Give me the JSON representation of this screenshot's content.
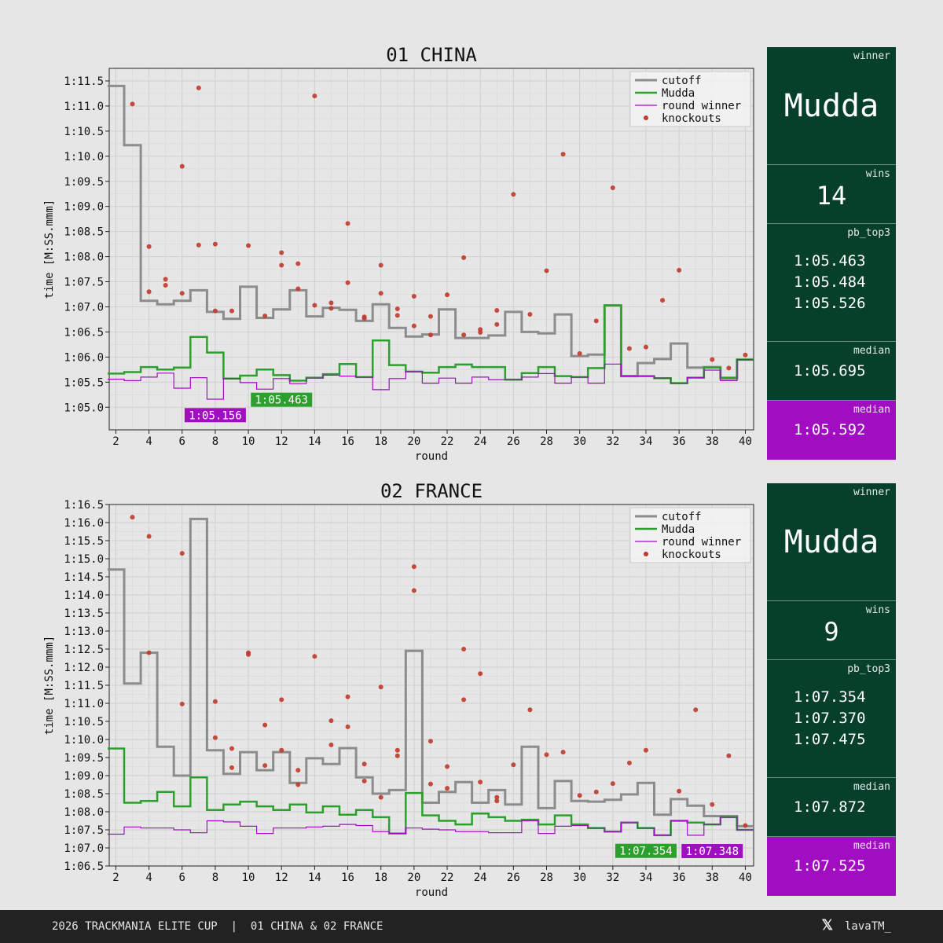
{
  "chart_data": [
    {
      "type": "line",
      "title": "01 CHINA",
      "xlabel": "round",
      "ylabel": "time [M:SS.mmm]",
      "xlim": [
        1.6,
        40.5
      ],
      "ylim": [
        64.55,
        71.75
      ],
      "xticks": [
        2,
        4,
        6,
        8,
        10,
        12,
        14,
        16,
        18,
        20,
        22,
        24,
        26,
        28,
        30,
        32,
        34,
        36,
        38,
        40
      ],
      "yticks": [
        65.0,
        65.5,
        66.0,
        66.5,
        67.0,
        67.5,
        68.0,
        68.5,
        69.0,
        69.5,
        70.0,
        70.5,
        71.0,
        71.5
      ],
      "ytick_labels": [
        "1:05.0",
        "1:05.5",
        "1:06.0",
        "1:06.5",
        "1:07.0",
        "1:07.5",
        "1:08.0",
        "1:08.5",
        "1:09.0",
        "1:09.5",
        "1:10.0",
        "1:10.5",
        "1:11.0",
        "1:11.5"
      ],
      "legend": {
        "position": "top-right",
        "entries": [
          "cutoff",
          "Mudda",
          "round winner",
          "knockouts"
        ]
      },
      "rounds": [
        2,
        3,
        4,
        5,
        6,
        7,
        8,
        9,
        10,
        11,
        12,
        13,
        14,
        15,
        16,
        17,
        18,
        19,
        20,
        21,
        22,
        23,
        24,
        25,
        26,
        27,
        28,
        29,
        30,
        31,
        32,
        33,
        34,
        35,
        36,
        37,
        38,
        39,
        40
      ],
      "series": [
        {
          "name": "cutoff",
          "color": "#8c8c8c",
          "values": [
            71.4,
            70.22,
            67.12,
            67.05,
            67.12,
            67.33,
            66.9,
            66.76,
            67.4,
            66.78,
            66.95,
            67.33,
            66.81,
            66.98,
            66.94,
            66.72,
            67.05,
            66.58,
            66.41,
            66.45,
            66.95,
            66.38,
            66.38,
            66.43,
            66.9,
            66.5,
            66.47,
            66.85,
            66.02,
            66.05,
            67.03,
            65.62,
            65.88,
            65.96,
            66.27,
            65.79,
            65.8,
            65.57,
            65.95
          ]
        },
        {
          "name": "Mudda",
          "color": "#2ca02c",
          "values": [
            65.67,
            65.7,
            65.8,
            65.75,
            65.79,
            66.4,
            66.09,
            65.57,
            65.63,
            65.75,
            65.64,
            65.53,
            65.59,
            65.66,
            65.86,
            65.6,
            66.33,
            65.84,
            65.71,
            65.69,
            65.8,
            65.85,
            65.8,
            65.8,
            65.55,
            65.68,
            65.8,
            65.62,
            65.6,
            65.78,
            67.03,
            65.62,
            65.62,
            65.58,
            65.48,
            65.59,
            65.79,
            65.59,
            65.95
          ]
        },
        {
          "name": "round winner",
          "color": "#a10ec2",
          "values": [
            65.56,
            65.53,
            65.6,
            65.68,
            65.38,
            65.59,
            65.16,
            65.57,
            65.49,
            65.36,
            65.57,
            65.47,
            65.58,
            65.64,
            65.62,
            65.6,
            65.35,
            65.57,
            65.71,
            65.48,
            65.58,
            65.48,
            65.6,
            65.55,
            65.55,
            65.6,
            65.67,
            65.48,
            65.6,
            65.48,
            65.86,
            65.62,
            65.62,
            65.58,
            65.48,
            65.59,
            65.74,
            65.53,
            65.95
          ]
        }
      ],
      "knockouts": [
        [
          3,
          71.04
        ],
        [
          4,
          68.2
        ],
        [
          4,
          67.3
        ],
        [
          5,
          67.55
        ],
        [
          5,
          67.43
        ],
        [
          6,
          69.8
        ],
        [
          6,
          67.27
        ],
        [
          7,
          71.36
        ],
        [
          7,
          68.23
        ],
        [
          8,
          68.25
        ],
        [
          8,
          66.92
        ],
        [
          9,
          66.92
        ],
        [
          10,
          68.22
        ],
        [
          11,
          66.82
        ],
        [
          12,
          68.08
        ],
        [
          12,
          67.83
        ],
        [
          13,
          67.86
        ],
        [
          13,
          67.36
        ],
        [
          14,
          71.2
        ],
        [
          14,
          67.03
        ],
        [
          15,
          67.08
        ],
        [
          15,
          66.97
        ],
        [
          16,
          68.66
        ],
        [
          16,
          67.48
        ],
        [
          17,
          66.8
        ],
        [
          17,
          66.77
        ],
        [
          18,
          67.83
        ],
        [
          18,
          67.27
        ],
        [
          19,
          66.96
        ],
        [
          19,
          66.83
        ],
        [
          20,
          67.21
        ],
        [
          20,
          66.62
        ],
        [
          21,
          66.81
        ],
        [
          21,
          66.44
        ],
        [
          22,
          67.24
        ],
        [
          23,
          67.98
        ],
        [
          23,
          66.44
        ],
        [
          24,
          66.55
        ],
        [
          24,
          66.49
        ],
        [
          25,
          66.93
        ],
        [
          25,
          66.65
        ],
        [
          26,
          69.24
        ],
        [
          27,
          66.85
        ],
        [
          28,
          67.72
        ],
        [
          29,
          70.04
        ],
        [
          30,
          66.07
        ],
        [
          31,
          66.72
        ],
        [
          32,
          69.37
        ],
        [
          33,
          66.17
        ],
        [
          34,
          66.2
        ],
        [
          35,
          67.13
        ],
        [
          36,
          67.73
        ],
        [
          38,
          65.95
        ],
        [
          39,
          65.78
        ],
        [
          40,
          66.04
        ]
      ],
      "annotations": [
        {
          "text": "1:05.156",
          "color": "#a10ec2",
          "x": 8,
          "y": 65.156
        },
        {
          "text": "1:05.463",
          "color": "#2ca02c",
          "x": 12,
          "y": 65.463
        }
      ]
    },
    {
      "type": "line",
      "title": "02 FRANCE",
      "xlabel": "round",
      "ylabel": "time [M:SS.mmm]",
      "xlim": [
        1.6,
        40.5
      ],
      "ylim": [
        66.5,
        76.5
      ],
      "xticks": [
        2,
        4,
        6,
        8,
        10,
        12,
        14,
        16,
        18,
        20,
        22,
        24,
        26,
        28,
        30,
        32,
        34,
        36,
        38,
        40
      ],
      "yticks": [
        66.5,
        67.0,
        67.5,
        68.0,
        68.5,
        69.0,
        69.5,
        70.0,
        70.5,
        71.0,
        71.5,
        72.0,
        72.5,
        73.0,
        73.5,
        74.0,
        74.5,
        75.0,
        75.5,
        76.0,
        76.5
      ],
      "ytick_labels": [
        "1:06.5",
        "1:07.0",
        "1:07.5",
        "1:08.0",
        "1:08.5",
        "1:09.0",
        "1:09.5",
        "1:10.0",
        "1:10.5",
        "1:11.0",
        "1:11.5",
        "1:12.0",
        "1:12.5",
        "1:13.0",
        "1:13.5",
        "1:14.0",
        "1:14.5",
        "1:15.0",
        "1:15.5",
        "1:16.0",
        "1:16.5"
      ],
      "legend": {
        "position": "top-right",
        "entries": [
          "cutoff",
          "Mudda",
          "round winner",
          "knockouts"
        ]
      },
      "rounds": [
        2,
        3,
        4,
        5,
        6,
        7,
        8,
        9,
        10,
        11,
        12,
        13,
        14,
        15,
        16,
        17,
        18,
        19,
        20,
        21,
        22,
        23,
        24,
        25,
        26,
        27,
        28,
        29,
        30,
        31,
        32,
        33,
        34,
        35,
        36,
        37,
        38,
        39,
        40
      ],
      "series": [
        {
          "name": "cutoff",
          "color": "#8c8c8c",
          "values": [
            74.7,
            71.55,
            72.4,
            69.8,
            69.0,
            76.1,
            69.7,
            69.05,
            69.65,
            69.15,
            69.65,
            68.8,
            69.48,
            69.32,
            69.76,
            68.95,
            68.5,
            68.6,
            72.45,
            68.25,
            68.55,
            68.82,
            68.25,
            68.6,
            68.2,
            69.8,
            68.1,
            68.85,
            68.3,
            68.28,
            68.33,
            68.48,
            68.8,
            67.92,
            68.35,
            68.17,
            67.88,
            67.88,
            67.6
          ]
        },
        {
          "name": "Mudda",
          "color": "#2ca02c",
          "values": [
            69.75,
            68.25,
            68.3,
            68.55,
            68.15,
            68.95,
            68.05,
            68.2,
            68.28,
            68.15,
            68.05,
            68.2,
            67.98,
            68.15,
            67.92,
            68.05,
            67.85,
            67.4,
            68.52,
            67.9,
            67.75,
            67.65,
            67.95,
            67.85,
            67.75,
            67.78,
            67.65,
            67.9,
            67.65,
            67.55,
            67.45,
            67.7,
            67.55,
            67.35,
            67.75,
            67.7,
            67.65,
            67.85,
            67.5
          ]
        },
        {
          "name": "round winner",
          "color": "#a10ec2",
          "values": [
            67.38,
            67.58,
            67.55,
            67.55,
            67.5,
            67.42,
            67.75,
            67.72,
            67.6,
            67.4,
            67.55,
            67.55,
            67.58,
            67.6,
            67.65,
            67.62,
            67.45,
            67.4,
            67.55,
            67.52,
            67.5,
            67.45,
            67.45,
            67.42,
            67.42,
            67.75,
            67.4,
            67.6,
            67.62,
            67.55,
            67.45,
            67.7,
            67.55,
            67.35,
            67.75,
            67.35,
            67.65,
            67.85,
            67.5
          ]
        }
      ],
      "knockouts": [
        [
          3,
          76.15
        ],
        [
          4,
          75.62
        ],
        [
          4,
          72.4
        ],
        [
          6,
          75.15
        ],
        [
          6,
          70.98
        ],
        [
          8,
          71.05
        ],
        [
          8,
          70.05
        ],
        [
          9,
          69.75
        ],
        [
          9,
          69.22
        ],
        [
          10,
          72.4
        ],
        [
          10,
          72.35
        ],
        [
          11,
          70.4
        ],
        [
          11,
          69.28
        ],
        [
          12,
          71.1
        ],
        [
          12,
          69.7
        ],
        [
          13,
          69.15
        ],
        [
          13,
          68.75
        ],
        [
          14,
          72.3
        ],
        [
          15,
          70.52
        ],
        [
          15,
          69.85
        ],
        [
          16,
          71.18
        ],
        [
          16,
          70.35
        ],
        [
          17,
          69.32
        ],
        [
          17,
          68.85
        ],
        [
          18,
          71.45
        ],
        [
          18,
          68.4
        ],
        [
          19,
          69.7
        ],
        [
          19,
          69.55
        ],
        [
          20,
          74.78
        ],
        [
          20,
          74.12
        ],
        [
          21,
          69.95
        ],
        [
          21,
          68.77
        ],
        [
          22,
          69.25
        ],
        [
          22,
          68.65
        ],
        [
          23,
          72.5
        ],
        [
          23,
          71.1
        ],
        [
          24,
          71.82
        ],
        [
          24,
          68.82
        ],
        [
          25,
          68.4
        ],
        [
          25,
          68.3
        ],
        [
          26,
          69.3
        ],
        [
          27,
          70.82
        ],
        [
          28,
          69.58
        ],
        [
          29,
          69.65
        ],
        [
          30,
          68.45
        ],
        [
          31,
          68.55
        ],
        [
          32,
          68.78
        ],
        [
          33,
          69.35
        ],
        [
          34,
          69.7
        ],
        [
          36,
          68.57
        ],
        [
          37,
          70.82
        ],
        [
          38,
          68.2
        ],
        [
          39,
          69.55
        ],
        [
          40,
          67.62
        ]
      ],
      "annotations": [
        {
          "text": "1:07.354",
          "color": "#2ca02c",
          "x": 34,
          "y": 67.354
        },
        {
          "text": "1:07.348",
          "color": "#a10ec2",
          "x": 38,
          "y": 67.348
        }
      ]
    }
  ],
  "panels": [
    {
      "winner_label": "winner",
      "winner": "Mudda",
      "wins_label": "wins",
      "wins": "14",
      "pb_label": "pb_top3",
      "pb_top3": [
        "1:05.463",
        "1:05.484",
        "1:05.526"
      ],
      "median_label": "median",
      "median": "1:05.695",
      "median2_label": "median",
      "median2": "1:05.592"
    },
    {
      "winner_label": "winner",
      "winner": "Mudda",
      "wins_label": "wins",
      "wins": "9",
      "pb_label": "pb_top3",
      "pb_top3": [
        "1:07.354",
        "1:07.370",
        "1:07.475"
      ],
      "median_label": "median",
      "median": "1:07.872",
      "median2_label": "median",
      "median2": "1:07.525"
    }
  ],
  "footer": {
    "text": "2026 TRACKMANIA ELITE CUP  |  01 CHINA & 02 FRANCE",
    "x_icon": "x-logo-icon",
    "handle": "lavaTM_"
  },
  "colors": {
    "background": "#e6e6e6",
    "plot_bg": "#e6e6e6",
    "grid": "#cfcfcf",
    "cutoff": "#8c8c8c",
    "mudda": "#2ca02c",
    "winner": "#a10ec2",
    "knockout": "#c0392b",
    "panel_green": "#06402b",
    "panel_purple": "#a10ec2",
    "footer_bg": "#222222"
  }
}
